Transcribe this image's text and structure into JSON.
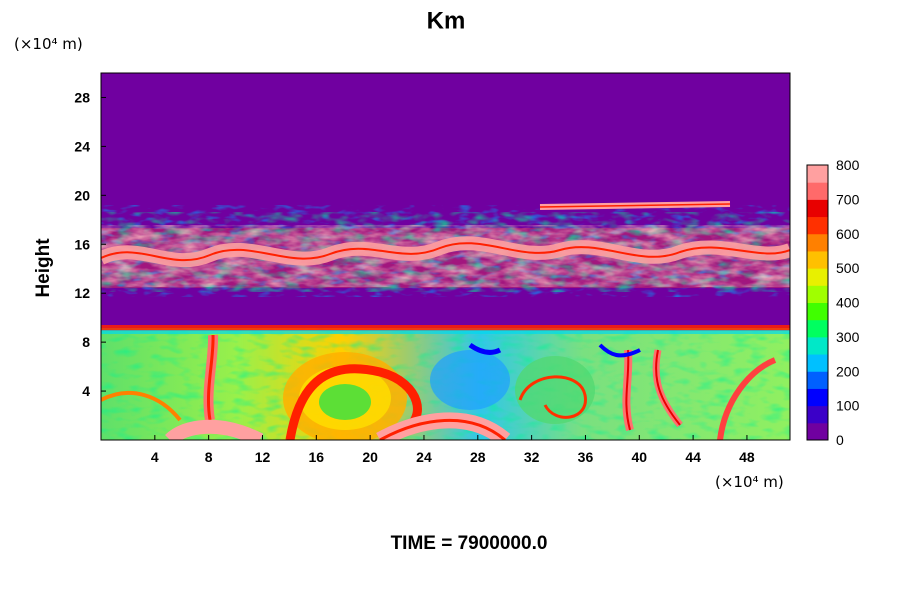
{
  "chart_data": {
    "type": "heatmap",
    "title": "Km",
    "ylabel": "Height",
    "y_unit": "(×10⁴ m)",
    "x_unit": "(×10⁴ m)",
    "xlim": [
      0,
      51.2
    ],
    "ylim": [
      0,
      30
    ],
    "x_ticks": [
      4,
      8,
      12,
      16,
      20,
      24,
      28,
      32,
      36,
      40,
      44,
      48
    ],
    "y_ticks": [
      4,
      8,
      12,
      16,
      20,
      24,
      28
    ],
    "colorbar": {
      "range": [
        0,
        800
      ],
      "ticks": [
        0,
        100,
        200,
        300,
        400,
        500,
        600,
        700,
        800
      ],
      "colors": [
        "#7000a0",
        "#3b00c8",
        "#0000ff",
        "#0060ff",
        "#00c0ff",
        "#00e8c8",
        "#00ff60",
        "#40ff00",
        "#a0ff00",
        "#e8f000",
        "#ffc000",
        "#ff8000",
        "#ff3000",
        "#e80000",
        "#ff6a6a",
        "#ffa0a0"
      ]
    },
    "layers": [
      {
        "name": "upper quiet region",
        "y_range": [
          18.8,
          30
        ],
        "level": 0
      },
      {
        "name": "upper turbulent band",
        "y_range": [
          12.2,
          18.8
        ],
        "level": 760
      },
      {
        "name": "middle quiet region",
        "y_range": [
          9.2,
          12.2
        ],
        "level": 0
      },
      {
        "name": "lower boundary layer",
        "y_range": [
          0,
          9.2
        ],
        "level": 420
      }
    ]
  },
  "footer": {
    "time_label": "TIME = 7900000.0"
  }
}
